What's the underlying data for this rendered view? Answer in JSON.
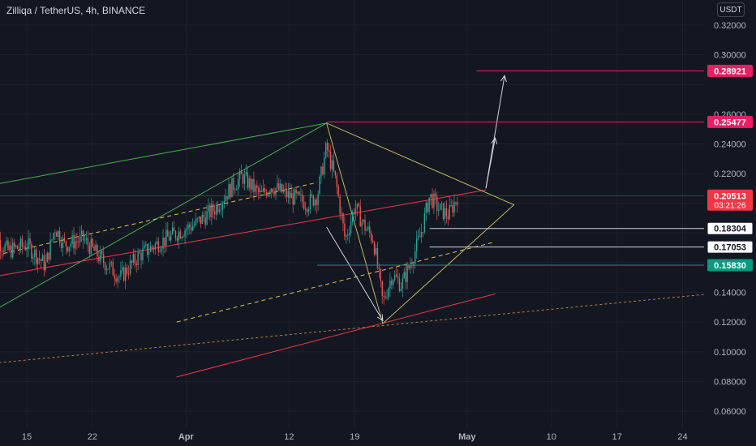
{
  "header": {
    "symbol_title": "Zilliqa / TetherUS, 4h, BINANCE",
    "currency_label": "USDT"
  },
  "colors": {
    "background": "#131722",
    "candle_up": "#26a69a",
    "candle_down": "#ef5350",
    "channel_green": "#4caf50",
    "channel_red": "#f23645",
    "triangle_yellow": "#c9b458",
    "dashed_yellow": "#e6c24a",
    "dotted_orange": "#c17a3c",
    "arrow_white": "#d1d4dc",
    "target_red": "#e91e63",
    "current_price": "#f23645",
    "support_teal": "#089981"
  },
  "chart_data": {
    "type": "candlestick",
    "title": "Zilliqa / TetherUS, 4h, BINANCE",
    "y_axis_ticks": [
      "0.32000",
      "0.30000",
      "0.28921",
      "0.26000",
      "0.25477",
      "0.24000",
      "0.22000",
      "0.20513",
      "0.18304",
      "0.17053",
      "0.15830",
      "0.14000",
      "0.12000",
      "0.10000",
      "0.08000",
      "0.06000"
    ],
    "y_grid_values": [
      0.32,
      0.3,
      0.28,
      0.26,
      0.24,
      0.22,
      0.2,
      0.18,
      0.16,
      0.14,
      0.12,
      0.1,
      0.08,
      0.06
    ],
    "ylim": [
      0.051,
      0.334
    ],
    "x_axis_ticks": [
      "15",
      "22",
      "Apr",
      "12",
      "19",
      "May",
      "10",
      "17",
      "24"
    ],
    "bold_x_ticks": [
      "Apr",
      "May"
    ],
    "price_tags": [
      {
        "label": "0.28921",
        "value": 0.28921,
        "kind": "target",
        "line_from": "2021-05-02"
      },
      {
        "label": "0.25477",
        "value": 0.25477,
        "kind": "target",
        "line_from": "2021-04-16"
      },
      {
        "label": "0.20513",
        "value": 0.20513,
        "kind": "current",
        "countdown": "03:21:26",
        "line_from": "2021-03-11"
      },
      {
        "label": "0.18304",
        "value": 0.18304,
        "kind": "level",
        "line_from": "2021-04-27"
      },
      {
        "label": "0.17053",
        "value": 0.17053,
        "kind": "level",
        "line_from": "2021-04-27"
      },
      {
        "label": "0.15830",
        "value": 0.1583,
        "kind": "support",
        "line_from": "2021-04-15"
      }
    ],
    "close_path": [
      {
        "date": "2021-03-11",
        "price": 0.181
      },
      {
        "date": "2021-03-13",
        "price": 0.168
      },
      {
        "date": "2021-03-15",
        "price": 0.172
      },
      {
        "date": "2021-03-17",
        "price": 0.158
      },
      {
        "date": "2021-03-18",
        "price": 0.184
      },
      {
        "date": "2021-03-19",
        "price": 0.172
      },
      {
        "date": "2021-03-21",
        "price": 0.176
      },
      {
        "date": "2021-03-23",
        "price": 0.162
      },
      {
        "date": "2021-03-25",
        "price": 0.15
      },
      {
        "date": "2021-03-27",
        "price": 0.165
      },
      {
        "date": "2021-03-29",
        "price": 0.173
      },
      {
        "date": "2021-03-31",
        "price": 0.18
      },
      {
        "date": "2021-04-02",
        "price": 0.186
      },
      {
        "date": "2021-04-04",
        "price": 0.196
      },
      {
        "date": "2021-04-06",
        "price": 0.212
      },
      {
        "date": "2021-04-07",
        "price": 0.218
      },
      {
        "date": "2021-04-09",
        "price": 0.205
      },
      {
        "date": "2021-04-10",
        "price": 0.212
      },
      {
        "date": "2021-04-12",
        "price": 0.205
      },
      {
        "date": "2021-04-14",
        "price": 0.2
      },
      {
        "date": "2021-04-15",
        "price": 0.205
      },
      {
        "date": "2021-04-16",
        "price": 0.238
      },
      {
        "date": "2021-04-17",
        "price": 0.214
      },
      {
        "date": "2021-04-18",
        "price": 0.175
      },
      {
        "date": "2021-04-19",
        "price": 0.198
      },
      {
        "date": "2021-04-20",
        "price": 0.185
      },
      {
        "date": "2021-04-21",
        "price": 0.176
      },
      {
        "date": "2021-04-22",
        "price": 0.133
      },
      {
        "date": "2021-04-23",
        "price": 0.152
      },
      {
        "date": "2021-04-24",
        "price": 0.145
      },
      {
        "date": "2021-04-25",
        "price": 0.16
      },
      {
        "date": "2021-04-26",
        "price": 0.178
      },
      {
        "date": "2021-04-27",
        "price": 0.205
      },
      {
        "date": "2021-04-28",
        "price": 0.196
      },
      {
        "date": "2021-04-29",
        "price": 0.192
      },
      {
        "date": "2021-04-30",
        "price": 0.205
      }
    ],
    "annotations": [
      {
        "kind": "channel-line",
        "color": "green",
        "from": [
          "2021-03-11",
          0.126
        ],
        "to": [
          "2021-03-23",
          0.15
        ],
        "extend_to": [
          "2021-04-16",
          0.254
        ]
      },
      {
        "kind": "channel-line",
        "color": "green",
        "from": [
          "2021-03-11",
          0.212
        ],
        "to": [
          "2021-04-16",
          0.254
        ]
      },
      {
        "kind": "channel-line",
        "color": "red",
        "from": [
          "2021-03-11",
          0.15
        ],
        "to": [
          "2021-05-03",
          0.209
        ]
      },
      {
        "kind": "dashed-midline",
        "color": "yellow",
        "from": [
          "2021-03-11",
          0.164
        ],
        "to": [
          "2021-04-15",
          0.214
        ]
      },
      {
        "kind": "dashed-midline",
        "color": "yellow",
        "from": [
          "2021-03-31",
          0.12
        ],
        "to": [
          "2021-05-04",
          0.174
        ]
      },
      {
        "kind": "trend-line",
        "color": "red",
        "from": [
          "2021-03-31",
          0.083
        ],
        "to": [
          "2021-05-04",
          0.139
        ]
      },
      {
        "kind": "dotted-line",
        "color": "orange",
        "from": [
          "2021-03-11",
          0.092
        ],
        "to": [
          "2021-05-27",
          0.139
        ]
      },
      {
        "kind": "triangle",
        "color": "yellow",
        "points": [
          [
            "2021-04-16",
            0.254
          ],
          [
            "2021-05-06",
            0.199
          ],
          [
            "2021-04-22",
            0.119
          ]
        ]
      },
      {
        "kind": "arrow",
        "from": [
          "2021-04-16",
          0.184
        ],
        "to": [
          "2021-04-22",
          0.121
        ]
      },
      {
        "kind": "arrow",
        "from": [
          "2021-05-03",
          0.21
        ],
        "to": [
          "2021-05-04",
          0.244
        ]
      },
      {
        "kind": "arrow",
        "from": [
          "2021-05-03",
          0.21
        ],
        "to": [
          "2021-05-05",
          0.286
        ]
      }
    ]
  }
}
